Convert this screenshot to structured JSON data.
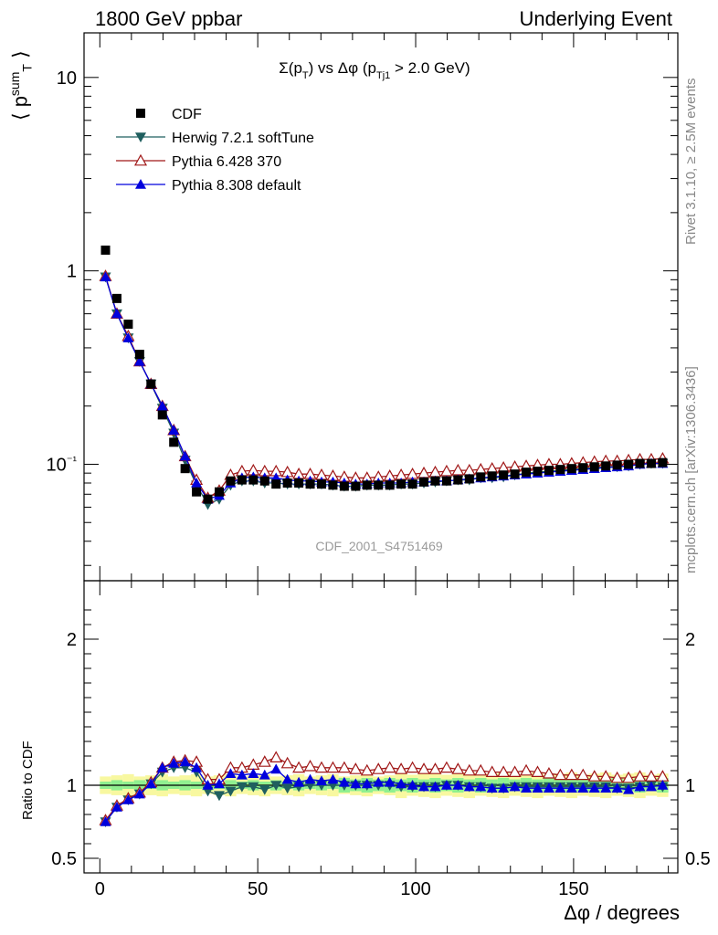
{
  "header": {
    "left": "1800 GeV ppbar",
    "right": "Underlying Event"
  },
  "side_text": {
    "rivet": "Rivet 3.1.10, ≥ 2.5M events",
    "mcplots": "mcplots.cern.ch [arXiv:1306.3436]"
  },
  "watermark": "CDF_2001_S4751469",
  "chart_data": [
    {
      "type": "scatter",
      "title": "Σ(p_T) vs Δφ (p_Tj1 > 2.0 GeV)",
      "ylabel": "⟨ p_T^sum ⟩",
      "xlabel": "Δφ / degrees",
      "xlim": [
        -5,
        183
      ],
      "ylim": [
        0.025,
        17
      ],
      "yscale": "log",
      "yticks": [
        "10⁻¹",
        "1",
        "10"
      ],
      "legend": "top-left",
      "x": [
        1.8,
        5.4,
        9.0,
        12.6,
        16.2,
        19.8,
        23.4,
        27.0,
        30.6,
        34.2,
        37.8,
        41.4,
        45.0,
        48.6,
        52.2,
        55.8,
        59.4,
        63.0,
        66.6,
        70.2,
        73.8,
        77.4,
        81.0,
        84.6,
        88.2,
        91.8,
        95.4,
        99.0,
        102.6,
        106.2,
        109.8,
        113.4,
        117.0,
        120.6,
        124.2,
        127.8,
        131.4,
        135.0,
        138.6,
        142.2,
        145.8,
        149.4,
        153.0,
        156.6,
        160.2,
        163.8,
        167.4,
        171.0,
        174.6,
        178.2
      ],
      "series": [
        {
          "name": "CDF",
          "color": "#000000",
          "marker": "square",
          "values": [
            1.28,
            0.72,
            0.53,
            0.37,
            0.26,
            0.18,
            0.13,
            0.095,
            0.072,
            0.066,
            0.072,
            0.082,
            0.083,
            0.083,
            0.082,
            0.079,
            0.08,
            0.08,
            0.079,
            0.079,
            0.078,
            0.077,
            0.077,
            0.078,
            0.078,
            0.078,
            0.079,
            0.079,
            0.081,
            0.082,
            0.082,
            0.083,
            0.084,
            0.086,
            0.087,
            0.088,
            0.089,
            0.091,
            0.092,
            0.093,
            0.094,
            0.095,
            0.096,
            0.097,
            0.098,
            0.099,
            0.1,
            0.101,
            0.101,
            0.102
          ]
        },
        {
          "name": "Herwig 7.2.1 softTune",
          "color": "#1f5f5f",
          "marker": "triangle-down",
          "values": [
            0.93,
            0.6,
            0.45,
            0.34,
            0.26,
            0.195,
            0.145,
            0.105,
            0.078,
            0.062,
            0.066,
            0.078,
            0.082,
            0.082,
            0.08,
            0.08,
            0.079,
            0.079,
            0.079,
            0.079,
            0.078,
            0.077,
            0.077,
            0.078,
            0.078,
            0.078,
            0.079,
            0.079,
            0.08,
            0.081,
            0.082,
            0.083,
            0.083,
            0.085,
            0.085,
            0.086,
            0.088,
            0.09,
            0.091,
            0.092,
            0.093,
            0.094,
            0.095,
            0.096,
            0.097,
            0.097,
            0.098,
            0.1,
            0.101,
            0.101
          ]
        },
        {
          "name": "Pythia 6.428 370",
          "color": "#a01818",
          "marker": "triangle-open",
          "values": [
            0.94,
            0.6,
            0.46,
            0.34,
            0.26,
            0.2,
            0.15,
            0.11,
            0.083,
            0.067,
            0.073,
            0.088,
            0.092,
            0.093,
            0.092,
            0.092,
            0.091,
            0.089,
            0.089,
            0.088,
            0.087,
            0.086,
            0.085,
            0.085,
            0.086,
            0.087,
            0.088,
            0.089,
            0.09,
            0.091,
            0.092,
            0.093,
            0.093,
            0.094,
            0.095,
            0.096,
            0.097,
            0.098,
            0.099,
            0.1,
            0.1,
            0.101,
            0.102,
            0.103,
            0.104,
            0.104,
            0.105,
            0.106,
            0.106,
            0.107
          ]
        },
        {
          "name": "Pythia 8.308 default",
          "color": "#0000dd",
          "marker": "triangle-up",
          "values": [
            0.93,
            0.6,
            0.45,
            0.34,
            0.26,
            0.2,
            0.15,
            0.11,
            0.08,
            0.066,
            0.069,
            0.08,
            0.085,
            0.086,
            0.085,
            0.085,
            0.083,
            0.082,
            0.082,
            0.081,
            0.081,
            0.08,
            0.079,
            0.079,
            0.08,
            0.08,
            0.08,
            0.081,
            0.081,
            0.082,
            0.082,
            0.083,
            0.084,
            0.085,
            0.086,
            0.087,
            0.088,
            0.089,
            0.09,
            0.091,
            0.092,
            0.093,
            0.094,
            0.095,
            0.096,
            0.097,
            0.098,
            0.1,
            0.101,
            0.101
          ]
        }
      ]
    },
    {
      "type": "line",
      "ylabel": "Ratio to CDF",
      "xlabel": "Δφ / degrees",
      "xlim": [
        -5,
        183
      ],
      "ylim": [
        0.4,
        2.4
      ],
      "yticks": [
        "0.5",
        "1",
        "2"
      ],
      "xticks": [
        "0",
        "50",
        "100",
        "150"
      ],
      "series": [
        {
          "name": "Herwig 7.2.1 softTune",
          "color": "#1f5f5f",
          "values": [
            0.75,
            0.85,
            0.9,
            0.94,
            1.01,
            1.09,
            1.12,
            1.12,
            1.09,
            0.96,
            0.93,
            0.96,
            0.99,
            0.99,
            0.97,
            1.0,
            0.98,
            0.99,
            1.0,
            1.0,
            1.0,
            1.0,
            1.0,
            1.0,
            1.0,
            1.0,
            0.99,
            0.99,
            0.99,
            0.99,
            1.0,
            1.0,
            0.99,
            0.99,
            0.98,
            0.98,
            0.99,
            0.99,
            0.99,
            0.99,
            0.99,
            0.99,
            0.99,
            0.99,
            0.99,
            0.98,
            0.98,
            0.99,
            1.0,
            0.99
          ]
        },
        {
          "name": "Pythia 6.428 370",
          "color": "#a01818",
          "values": [
            0.76,
            0.86,
            0.91,
            0.95,
            1.02,
            1.12,
            1.16,
            1.17,
            1.16,
            1.04,
            1.04,
            1.12,
            1.12,
            1.14,
            1.16,
            1.19,
            1.15,
            1.12,
            1.13,
            1.12,
            1.12,
            1.12,
            1.11,
            1.1,
            1.11,
            1.12,
            1.11,
            1.12,
            1.11,
            1.11,
            1.12,
            1.11,
            1.1,
            1.1,
            1.09,
            1.09,
            1.09,
            1.1,
            1.09,
            1.08,
            1.07,
            1.07,
            1.07,
            1.06,
            1.06,
            1.05,
            1.05,
            1.06,
            1.06,
            1.06
          ]
        },
        {
          "name": "Pythia 8.308 default",
          "color": "#0000dd",
          "values": [
            0.75,
            0.85,
            0.9,
            0.94,
            1.01,
            1.12,
            1.15,
            1.16,
            1.12,
            1.0,
            1.01,
            1.08,
            1.07,
            1.08,
            1.07,
            1.11,
            1.04,
            1.02,
            1.04,
            1.03,
            1.04,
            1.02,
            1.01,
            1.01,
            1.02,
            1.02,
            1.01,
            1.0,
            0.99,
            0.99,
            1.0,
            1.0,
            0.99,
            0.99,
            0.98,
            0.98,
            0.99,
            0.98,
            0.98,
            0.98,
            0.98,
            0.98,
            0.98,
            0.98,
            0.98,
            0.98,
            0.97,
            0.99,
            0.99,
            1.0
          ]
        }
      ],
      "band_color_inner": "#90f090",
      "band_color_outer": "#f8f8a0"
    }
  ]
}
